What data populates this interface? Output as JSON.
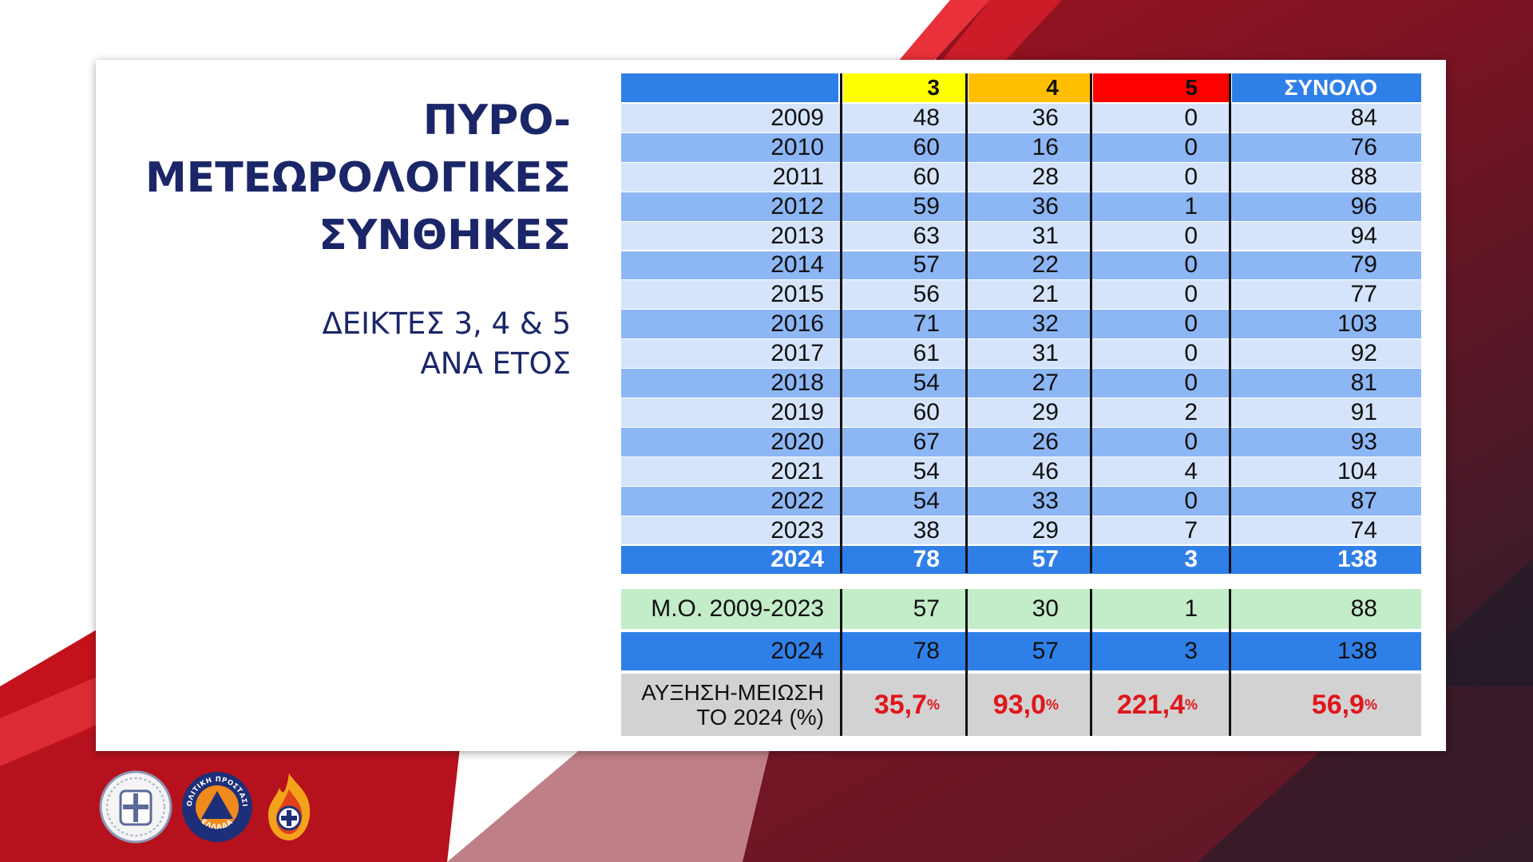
{
  "title": {
    "line1": "ΠΥΡΟ-",
    "line2": "ΜΕΤΕΩΡΟΛΟΓΙΚΕΣ",
    "line3": "ΣΥΝΘΗΚΕΣ"
  },
  "subtitle": {
    "line1": "ΔΕΙΚΤΕΣ 3, 4 & 5",
    "line2": "ΑΝΑ ΕΤΟΣ"
  },
  "table": {
    "headers": [
      "",
      "3",
      "4",
      "5",
      "ΣΥΝΟΛΟ"
    ],
    "header_colors": [
      "#2f7fe8",
      "#ffff00",
      "#ffbf00",
      "#ff0000",
      "#2f7fe8"
    ],
    "row_colors": [
      "#d6e4fb",
      "#8db6f4"
    ],
    "highlight_color": "#2f7fe8",
    "rows": [
      [
        "2009",
        "48",
        "36",
        "0",
        "84"
      ],
      [
        "2010",
        "60",
        "16",
        "0",
        "76"
      ],
      [
        "2011",
        "60",
        "28",
        "0",
        "88"
      ],
      [
        "2012",
        "59",
        "36",
        "1",
        "96"
      ],
      [
        "2013",
        "63",
        "31",
        "0",
        "94"
      ],
      [
        "2014",
        "57",
        "22",
        "0",
        "79"
      ],
      [
        "2015",
        "56",
        "21",
        "0",
        "77"
      ],
      [
        "2016",
        "71",
        "32",
        "0",
        "103"
      ],
      [
        "2017",
        "61",
        "31",
        "0",
        "92"
      ],
      [
        "2018",
        "54",
        "27",
        "0",
        "81"
      ],
      [
        "2019",
        "60",
        "29",
        "2",
        "91"
      ],
      [
        "2020",
        "67",
        "26",
        "0",
        "93"
      ],
      [
        "2021",
        "54",
        "46",
        "4",
        "104"
      ],
      [
        "2022",
        "54",
        "33",
        "0",
        "87"
      ],
      [
        "2023",
        "38",
        "29",
        "7",
        "74"
      ],
      [
        "2024",
        "78",
        "57",
        "3",
        "138"
      ]
    ]
  },
  "summary": {
    "average": {
      "label": "Μ.Ο. 2009-2023",
      "values": [
        "57",
        "30",
        "1",
        "88"
      ],
      "color": "#c3ecc8"
    },
    "current": {
      "label": "2024",
      "values": [
        "78",
        "57",
        "3",
        "138"
      ],
      "color": "#2f7fe8"
    },
    "change": {
      "label_line1": "ΑΥΞΗΣΗ-ΜΕΙΩΣΗ",
      "label_line2": "ΤΟ 2024 (%)",
      "values": [
        "35,7",
        "93,0",
        "221,4",
        "56,9"
      ],
      "unit": "%",
      "color": "#d2d2d2",
      "value_color": "#e0161b"
    }
  },
  "logos": [
    "hellenic-republic-emblem-icon",
    "civil-protection-logo-icon",
    "fire-service-logo-icon"
  ],
  "logo_texts": {
    "civil_protection_top": "ΠΟΛΙΤΙΚΗ ΠΡΟΣΤΑΣΙΑ",
    "civil_protection_bottom": "ΕΛΛΑΔΑ"
  }
}
